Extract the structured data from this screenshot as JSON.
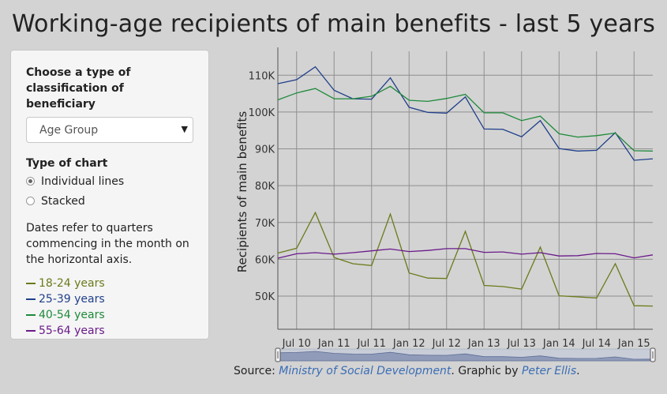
{
  "title": "Working-age recipients of main benefits - last 5 years",
  "sidebar": {
    "classification_label": "Choose a type of classification of beneficiary",
    "classification_value": "Age Group",
    "chart_type_label": "Type of chart",
    "chart_types": [
      {
        "label": "Individual lines",
        "checked": true
      },
      {
        "label": "Stacked",
        "checked": false
      }
    ],
    "note": "Dates refer to quarters commencing in the month on the horizontal axis.",
    "legend": [
      {
        "label": "18-24 years",
        "color": "#6b7a1a"
      },
      {
        "label": "25-39 years",
        "color": "#1f3f8a"
      },
      {
        "label": "40-54 years",
        "color": "#1e8a3a"
      },
      {
        "label": "55-64 years",
        "color": "#6a1a8a"
      }
    ]
  },
  "chart_data": {
    "type": "line",
    "title": "",
    "xlabel": "",
    "ylabel": "Recipients of main benefits",
    "ylim": [
      41000,
      116500
    ],
    "grid": true,
    "yticks": [
      50000,
      60000,
      70000,
      80000,
      90000,
      100000,
      110000
    ],
    "ytick_labels": [
      "50K",
      "60K",
      "70K",
      "80K",
      "90K",
      "100K",
      "110K"
    ],
    "xticks": [
      "Jul 10",
      "Jan 11",
      "Jul 11",
      "Jan 12",
      "Jul 12",
      "Jan 13",
      "Jul 13",
      "Jan 14",
      "Jul 14",
      "Jan 15"
    ],
    "x": [
      "Apr 10",
      "Jul 10",
      "Oct 10",
      "Jan 11",
      "Apr 11",
      "Jul 11",
      "Oct 11",
      "Jan 12",
      "Apr 12",
      "Jul 12",
      "Oct 12",
      "Jan 13",
      "Apr 13",
      "Jul 13",
      "Oct 13",
      "Jan 14",
      "Apr 14",
      "Jul 14",
      "Oct 14",
      "Jan 15",
      "Apr 15"
    ],
    "series": [
      {
        "name": "18-24 years",
        "color": "#6b7a1a",
        "values": [
          61700,
          63000,
          72700,
          60500,
          58800,
          58300,
          72300,
          56300,
          54900,
          54800,
          67600,
          52900,
          52600,
          51900,
          63300,
          50100,
          49800,
          49500,
          58800,
          47400,
          47300
        ]
      },
      {
        "name": "25-39 years",
        "color": "#1f3f8a",
        "values": [
          107700,
          108800,
          112300,
          105900,
          103600,
          103500,
          109300,
          101300,
          99900,
          99700,
          104100,
          95400,
          95300,
          93300,
          97700,
          90100,
          89400,
          89600,
          94400,
          86900,
          87300
        ]
      },
      {
        "name": "40-54 years",
        "color": "#1e8a3a",
        "values": [
          103300,
          105200,
          106400,
          103600,
          103600,
          104300,
          107000,
          103200,
          102900,
          103700,
          104800,
          99800,
          99800,
          97700,
          98900,
          94100,
          93200,
          93600,
          94300,
          89500,
          89400
        ]
      },
      {
        "name": "55-64 years",
        "color": "#6a1a8a",
        "values": [
          60300,
          61500,
          61800,
          61400,
          61800,
          62300,
          62800,
          62100,
          62400,
          62900,
          62900,
          61900,
          62000,
          61400,
          61800,
          60900,
          61000,
          61600,
          61500,
          60400,
          61200
        ]
      }
    ]
  },
  "source": {
    "prefix": "Source:",
    "link1": "Ministry of Social Development",
    "middle": ". Graphic by",
    "link2": "Peter Ellis",
    "suffix": "."
  }
}
